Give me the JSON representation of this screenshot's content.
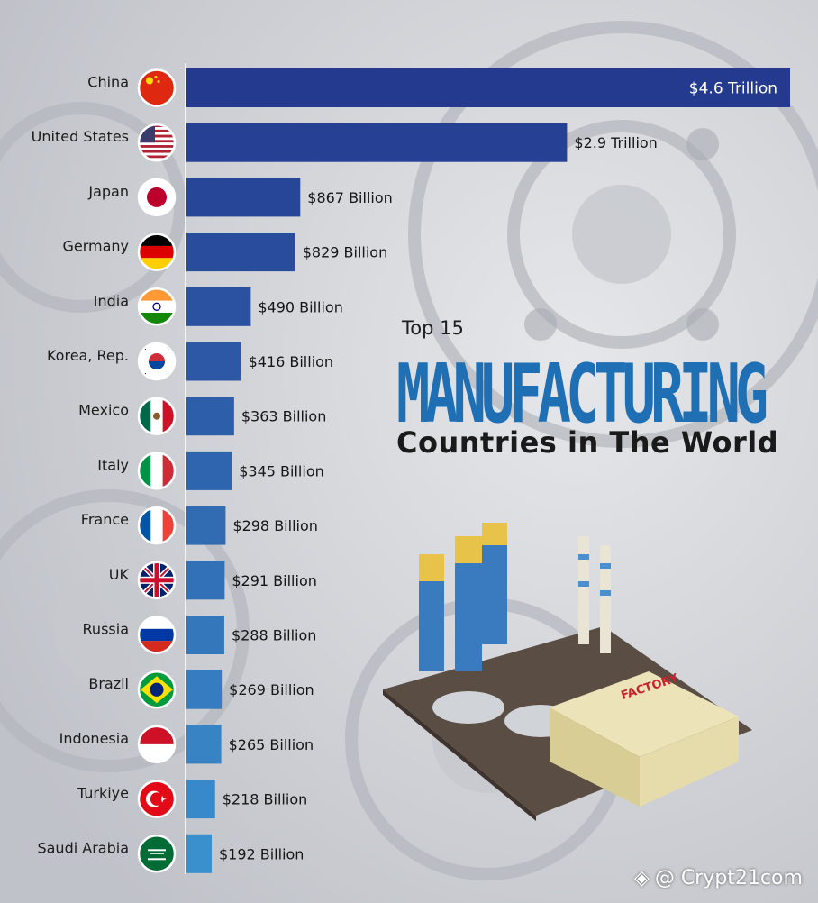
{
  "title": {
    "top": "Top 15",
    "main": "MANUFACTURING",
    "sub": "Countries in The World"
  },
  "watermark": "@ Crypt21com",
  "factory_sign": "FACTORY",
  "colors": {
    "bar_top": "#243a8e",
    "bar_bottom": "#3a8fcd",
    "title_accent": "#1f6fb4"
  },
  "chart_data": {
    "type": "bar",
    "orientation": "horizontal",
    "categories": [
      "China",
      "United States",
      "Japan",
      "Germany",
      "India",
      "Korea, Rep.",
      "Mexico",
      "Italy",
      "France",
      "UK",
      "Russia",
      "Brazil",
      "Indonesia",
      "Turkiye",
      "Saudi Arabia"
    ],
    "values": [
      4600,
      2900,
      867,
      829,
      490,
      416,
      363,
      345,
      298,
      291,
      288,
      269,
      265,
      218,
      192
    ],
    "value_labels": [
      "$4.6 Trillion",
      "$2.9 Trillion",
      "$867 Billion",
      "$829 Billion",
      "$490 Billion",
      "$416 Billion",
      "$363 Billion",
      "$345 Billion",
      "$298 Billion",
      "$291 Billion",
      "$288 Billion",
      "$269 Billion",
      "$265 Billion",
      "$218 Billion",
      "$192 Billion"
    ],
    "flags": [
      "china-flag-icon",
      "usa-flag-icon",
      "japan-flag-icon",
      "germany-flag-icon",
      "india-flag-icon",
      "korea-flag-icon",
      "mexico-flag-icon",
      "italy-flag-icon",
      "france-flag-icon",
      "uk-flag-icon",
      "russia-flag-icon",
      "brazil-flag-icon",
      "indonesia-flag-icon",
      "turkiye-flag-icon",
      "saudi-arabia-flag-icon"
    ],
    "unit": "USD billions"
  }
}
